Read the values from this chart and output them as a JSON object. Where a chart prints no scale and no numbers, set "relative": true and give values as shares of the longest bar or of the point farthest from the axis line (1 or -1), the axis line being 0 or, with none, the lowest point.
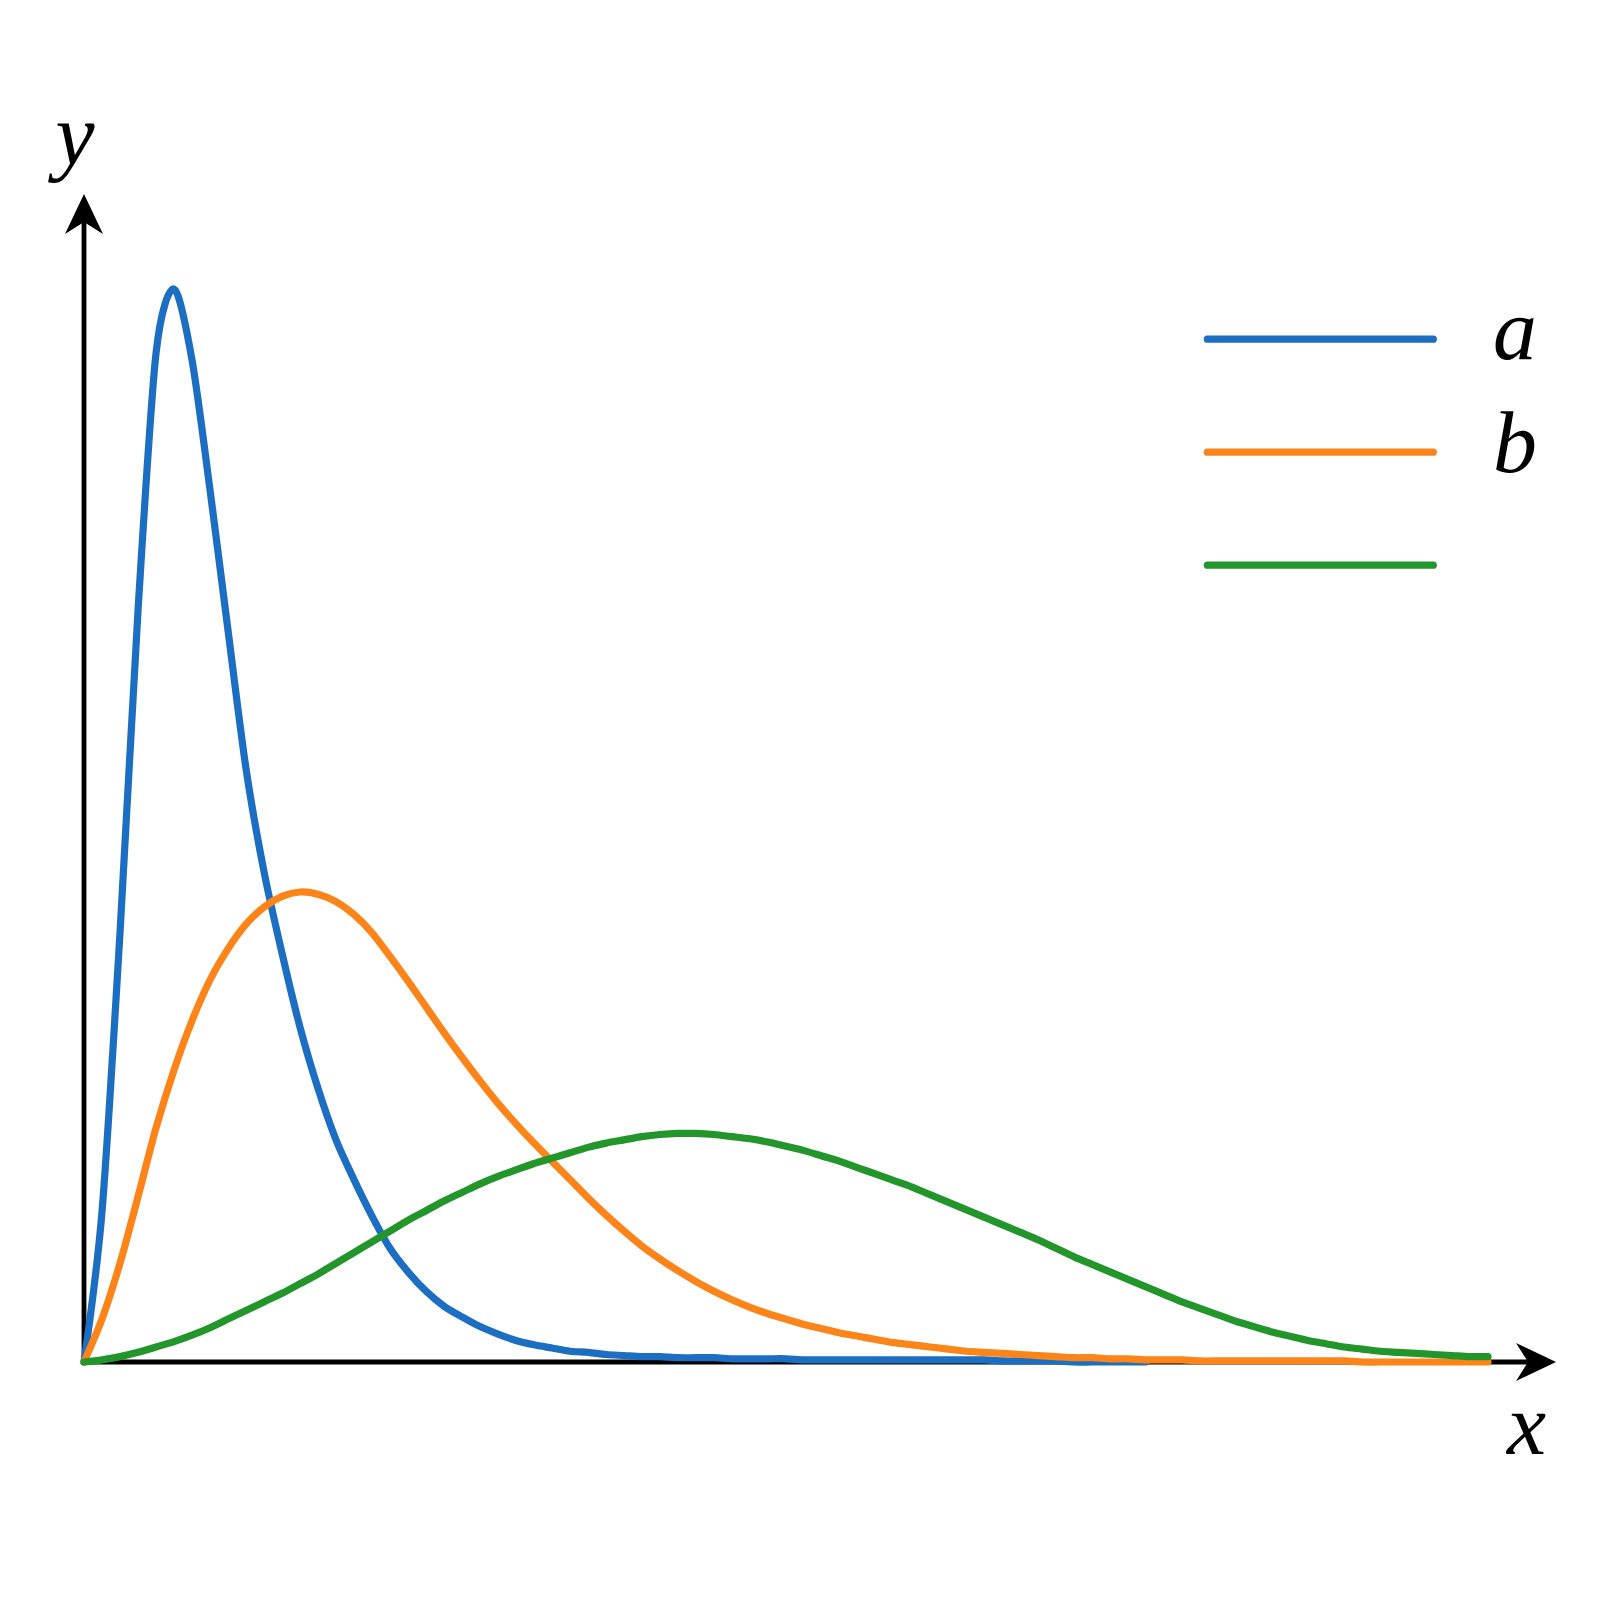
{
  "chart_data": {
    "type": "line",
    "relative": true,
    "xlabel": "x",
    "ylabel": "y",
    "legend": "top right",
    "categories": [
      null,
      null,
      null,
      null,
      null,
      null,
      null,
      null,
      null,
      null,
      null,
      null,
      null,
      null,
      null,
      null,
      null,
      null,
      null,
      null,
      null,
      null,
      null,
      null,
      null,
      null,
      null,
      null,
      null,
      null,
      null,
      null,
      null,
      null,
      null,
      null,
      null,
      null,
      null,
      null,
      null,
      null,
      null,
      null,
      null,
      null,
      null,
      null,
      null,
      null,
      null,
      null,
      null,
      null,
      null,
      null,
      null,
      null,
      null,
      null,
      null,
      null,
      null,
      null,
      null,
      null,
      null,
      null,
      null,
      null,
      null,
      null,
      null,
      null,
      null,
      null,
      null,
      null,
      null
    ],
    "series": [
      {
        "name": "a",
        "color": "#1b6ec2",
        "values": [
          0,
          0.14,
          0.4,
          0.7,
          0.94,
          1,
          0.934,
          0.813,
          0.682,
          0.553,
          0.457,
          0.381,
          0.312,
          0.255,
          0.207,
          0.17,
          0.136,
          0.106,
          0.084,
          0.066,
          0.052,
          0.042,
          0.033,
          0.026,
          0.02,
          0.016,
          0.013,
          0.01,
          0.009,
          0.007,
          0.006,
          0.005,
          0.005,
          0.004,
          0.004,
          0.004,
          0.003,
          0.003,
          0.003,
          0.003,
          0.002,
          0.002,
          0.002,
          0.002,
          0.002,
          0.002,
          0.002,
          0.002,
          0.002,
          0.002,
          0.002,
          0.001,
          0.001,
          0.001,
          0.001,
          0,
          0,
          0,
          0,
          0,
          null,
          null,
          null,
          null,
          null,
          null,
          null,
          null,
          null,
          null,
          null,
          null,
          null,
          null,
          null,
          null,
          null,
          null,
          null
        ]
      },
      {
        "name": "b",
        "color": "#fd8418",
        "values": [
          0,
          0.04,
          0.092,
          0.154,
          0.218,
          0.272,
          0.318,
          0.356,
          0.385,
          0.408,
          0.424,
          0.434,
          0.438,
          0.436,
          0.429,
          0.417,
          0.4,
          0.378,
          0.355,
          0.331,
          0.307,
          0.284,
          0.262,
          0.241,
          0.222,
          0.204,
          0.187,
          0.17,
          0.153,
          0.137,
          0.122,
          0.108,
          0.096,
          0.085,
          0.075,
          0.066,
          0.058,
          0.051,
          0.045,
          0.04,
          0.035,
          0.031,
          0.027,
          0.024,
          0.021,
          0.018,
          0.016,
          0.014,
          0.012,
          0.01,
          0.009,
          0.008,
          0.007,
          0.006,
          0.005,
          0.004,
          0.004,
          0.003,
          0.003,
          0.002,
          0.002,
          0.002,
          0.001,
          0.001,
          0.001,
          0.001,
          0.001,
          0.001,
          0.001,
          0.001,
          0.001,
          0,
          0,
          0,
          0,
          0,
          0,
          0,
          0
        ]
      },
      {
        "color": "#22962b",
        "values": [
          0,
          0.002,
          0.005,
          0.009,
          0.014,
          0.019,
          0.025,
          0.032,
          0.04,
          0.048,
          0.056,
          0.064,
          0.073,
          0.082,
          0.092,
          0.102,
          0.112,
          0.122,
          0.132,
          0.141,
          0.15,
          0.158,
          0.166,
          0.173,
          0.179,
          0.185,
          0.19,
          0.195,
          0.2,
          0.204,
          0.207,
          0.21,
          0.212,
          0.213,
          0.213,
          0.212,
          0.21,
          0.208,
          0.205,
          0.201,
          0.197,
          0.192,
          0.187,
          0.181,
          0.175,
          0.169,
          0.163,
          0.156,
          0.149,
          0.142,
          0.135,
          0.128,
          0.121,
          0.114,
          0.106,
          0.098,
          0.091,
          0.084,
          0.077,
          0.07,
          0.063,
          0.056,
          0.05,
          0.044,
          0.038,
          0.033,
          0.028,
          0.024,
          0.02,
          0.017,
          0.014,
          0.012,
          0.01,
          0.009,
          0.008,
          0.007,
          0.006,
          0.005,
          0.005
        ]
      }
    ]
  }
}
